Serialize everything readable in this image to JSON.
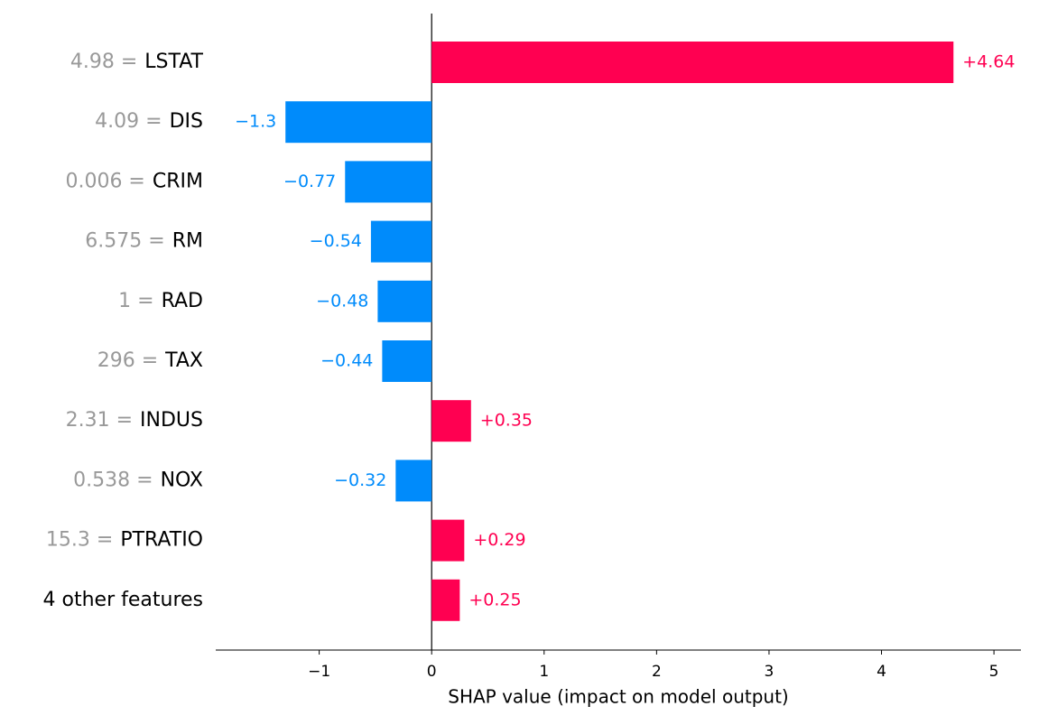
{
  "chart_data": {
    "type": "bar",
    "orientation": "horizontal",
    "categories": [
      "LSTAT",
      "DIS",
      "CRIM",
      "RM",
      "RAD",
      "TAX",
      "INDUS",
      "NOX",
      "PTRATIO",
      "4 other features"
    ],
    "feature_values": [
      "4.98 =",
      "4.09 =",
      "0.006 =",
      "6.575 =",
      "1 =",
      "296 =",
      "2.31 =",
      "0.538 =",
      "15.3 =",
      null
    ],
    "values": [
      4.64,
      -1.3,
      -0.77,
      -0.54,
      -0.48,
      -0.44,
      0.35,
      -0.32,
      0.29,
      0.25
    ],
    "value_labels": [
      "+4.64",
      "−1.3",
      "−0.77",
      "−0.54",
      "−0.48",
      "−0.44",
      "+0.35",
      "−0.32",
      "+0.29",
      "+0.25"
    ],
    "positive_color": "#ff0051",
    "negative_color": "#008bfb",
    "feature_value_color": "#999999",
    "xlabel": "SHAP value (impact on model output)",
    "xlim": [
      -1.92,
      5.24
    ],
    "xticks": [
      {
        "value": -1,
        "label": "−1"
      },
      0,
      1,
      2,
      3,
      4,
      5
    ]
  }
}
